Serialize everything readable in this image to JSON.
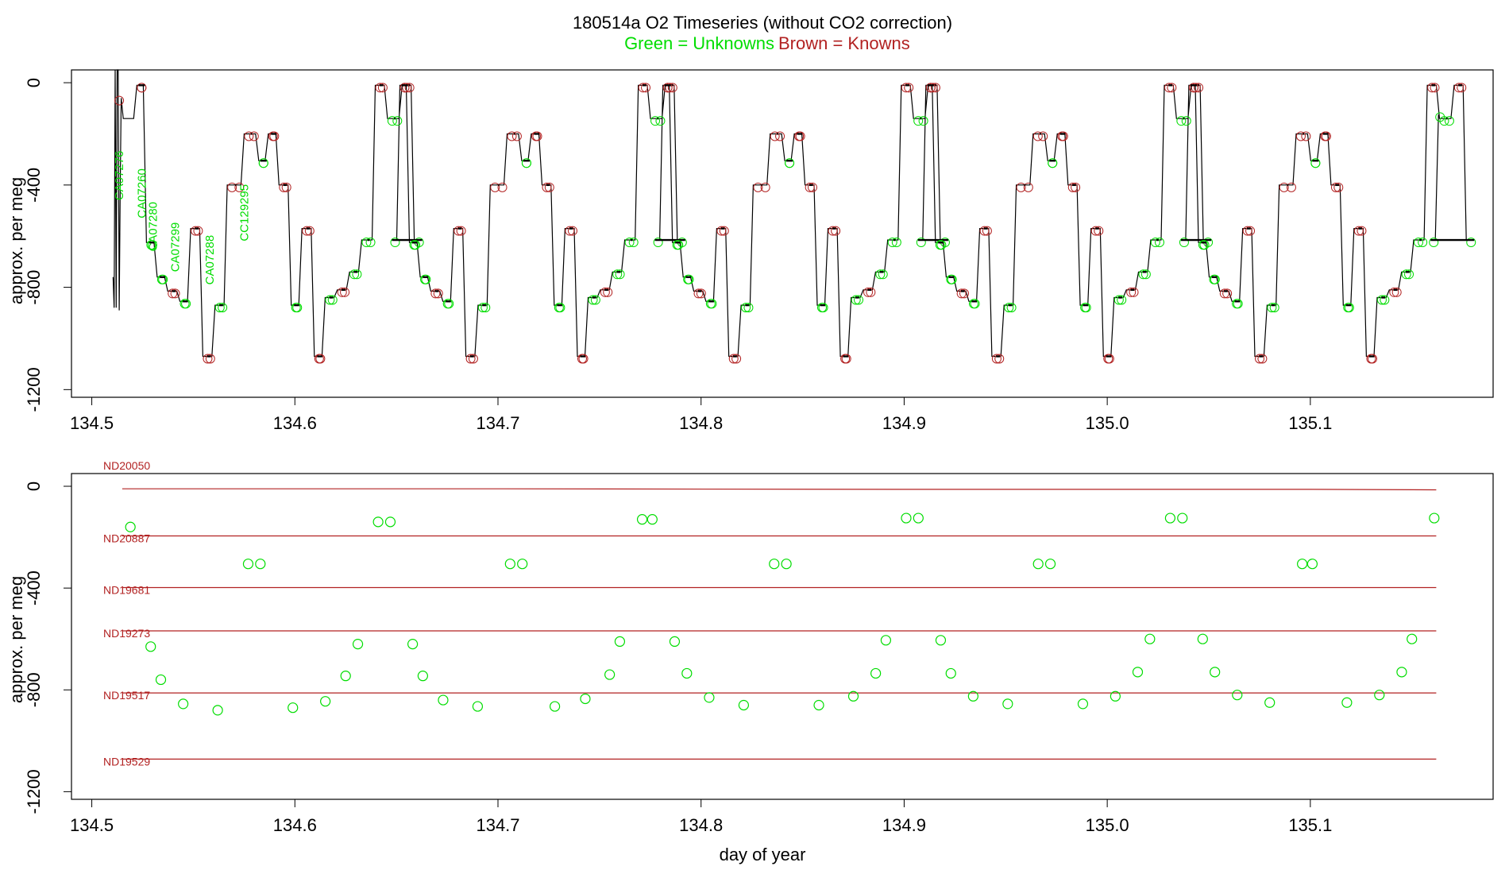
{
  "header": {
    "title": "180514a   O2 Timeseries (without CO2 correction)",
    "subtitle_unknowns": "Green = Unknowns",
    "subtitle_knowns": "Brown = Knowns"
  },
  "colors": {
    "knowns": "#b22222",
    "unknowns": "#00dd00",
    "trace": "#000000"
  },
  "chart_data": [
    {
      "type": "line",
      "title": "180514a   O2 Timeseries (without CO2 correction)",
      "xlabel": "",
      "ylabel": "approx. per meg",
      "xlim": [
        134.49,
        135.19
      ],
      "ylim": [
        -1230,
        50
      ],
      "xticks": [
        134.5,
        134.6,
        134.7,
        134.8,
        134.9,
        135.0,
        135.1
      ],
      "xtick_labels": [
        "134.5",
        "134.6",
        "134.7",
        "134.8",
        "134.9",
        "135.0",
        "135.1"
      ],
      "yticks": [
        0,
        -400,
        -800,
        -1200
      ],
      "ytick_labels": [
        "0",
        "-400",
        "-800",
        "-1200"
      ],
      "grid": false,
      "trace_start_spike": {
        "x": [
          134.5105,
          134.511,
          134.5115,
          134.512,
          134.5125,
          134.513,
          134.5135,
          134.514,
          134.5145,
          134.5155
        ],
        "y": [
          -760,
          -880,
          50,
          -880,
          50,
          50,
          -890,
          -400,
          -60,
          -140
        ]
      },
      "sequence_x": [
        134.5155,
        134.5222,
        134.5269,
        134.5322,
        134.5374,
        134.5434,
        134.5487,
        134.5547,
        134.5607,
        134.5667,
        134.575,
        134.5822,
        134.5869,
        134.5922,
        134.5982,
        134.6035,
        134.6096,
        134.6149,
        134.6209,
        134.6269,
        134.6329,
        134.6396,
        134.6456,
        134.6528,
        134.6588
      ],
      "sequence_y": [
        -140,
        -10,
        -625,
        -760,
        -815,
        -855,
        -570,
        -1070,
        -870,
        -400,
        -200,
        -305,
        -200,
        -400,
        -870,
        -570,
        -1070,
        -840,
        -810,
        -740,
        -615,
        -10,
        -140,
        -10,
        -615
      ],
      "sequence_kind": [
        "start",
        "known",
        "unknown",
        "unknown",
        "known",
        "unknown",
        "known",
        "known",
        "unknown",
        "known",
        "known",
        "unknown",
        "known",
        "known",
        "unknown",
        "known",
        "known",
        "unknown",
        "known",
        "unknown",
        "unknown",
        "known",
        "unknown",
        "known",
        "unknown"
      ],
      "period": 0.1295,
      "repeats": 5,
      "trace_end": {
        "x": [
          134.5155,
          135.1631
        ],
        "y": [
          -140,
          -125
        ]
      },
      "annotations": [
        {
          "text": "CA07276",
          "x": 134.5155,
          "y": -460
        },
        {
          "text": "CA07260",
          "x": 134.5265,
          "y": -530
        },
        {
          "text": "CA07280",
          "x": 134.532,
          "y": -660
        },
        {
          "text": "CA07299",
          "x": 134.543,
          "y": -740
        },
        {
          "text": "CA07288",
          "x": 134.56,
          "y": -790
        },
        {
          "text": "CC129295",
          "x": 134.577,
          "y": -620
        }
      ],
      "first_marker": {
        "x": 134.5135,
        "y": -70
      }
    },
    {
      "type": "scatter",
      "title": "",
      "xlabel": "day of year",
      "ylabel": "approx. per meg",
      "xlim": [
        134.49,
        135.19
      ],
      "ylim": [
        -1230,
        50
      ],
      "xticks": [
        134.5,
        134.6,
        134.7,
        134.8,
        134.9,
        135.0,
        135.1
      ],
      "xtick_labels": [
        "134.5",
        "134.6",
        "134.7",
        "134.8",
        "134.9",
        "135.0",
        "135.1"
      ],
      "yticks": [
        0,
        -400,
        -800,
        -1200
      ],
      "ytick_labels": [
        "0",
        "-400",
        "-800",
        "-1200"
      ],
      "grid": false,
      "reference_lines": [
        {
          "name": "ND20050",
          "x": [
            134.515,
            134.7,
            134.9,
            135.1,
            135.162
          ],
          "y": [
            -10,
            -10,
            -12,
            -12,
            -14
          ]
        },
        {
          "name": "ND20887",
          "x": [
            134.515,
            135.162
          ],
          "y": [
            -195,
            -195
          ]
        },
        {
          "name": "ND19681",
          "x": [
            134.515,
            135.162
          ],
          "y": [
            -398,
            -398
          ]
        },
        {
          "name": "ND19273",
          "x": [
            134.515,
            135.162
          ],
          "y": [
            -568,
            -568
          ]
        },
        {
          "name": "ND19517",
          "x": [
            134.515,
            135.162
          ],
          "y": [
            -812,
            -812
          ]
        },
        {
          "name": "ND19529",
          "x": [
            134.515,
            135.162
          ],
          "y": [
            -1072,
            -1072
          ]
        }
      ],
      "unknowns": {
        "x": [
          134.519,
          134.529,
          134.534,
          134.545,
          134.562,
          134.577,
          134.583,
          134.599,
          134.615,
          134.625,
          134.631,
          134.641,
          134.647,
          134.658,
          134.663,
          134.673,
          134.69,
          134.706,
          134.712,
          134.728,
          134.743,
          134.755,
          134.76,
          134.771,
          134.776,
          134.787,
          134.793,
          134.804,
          134.821,
          134.836,
          134.842,
          134.858,
          134.875,
          134.886,
          134.891,
          134.901,
          134.907,
          134.918,
          134.923,
          134.934,
          134.951,
          134.966,
          134.972,
          134.988,
          135.004,
          135.015,
          135.021,
          135.031,
          135.037,
          135.047,
          135.053,
          135.064,
          135.08,
          135.096,
          135.101,
          135.118,
          135.134,
          135.145,
          135.15,
          135.161
        ],
        "y": [
          -160,
          -630,
          -760,
          -855,
          -880,
          -305,
          -305,
          -870,
          -845,
          -745,
          -620,
          -140,
          -140,
          -620,
          -745,
          -840,
          -865,
          -305,
          -305,
          -865,
          -835,
          -740,
          -610,
          -130,
          -130,
          -610,
          -735,
          -830,
          -860,
          -305,
          -305,
          -860,
          -825,
          -735,
          -605,
          -125,
          -125,
          -605,
          -735,
          -825,
          -855,
          -305,
          -305,
          -855,
          -825,
          -730,
          -600,
          -125,
          -125,
          -600,
          -730,
          -820,
          -850,
          -305,
          -305,
          -850,
          -820,
          -730,
          -600,
          -125
        ]
      }
    }
  ],
  "axis_labels": {
    "top_ylabel": "approx. per meg",
    "bottom_ylabel": "approx. per meg",
    "bottom_xlabel": "day of year"
  }
}
